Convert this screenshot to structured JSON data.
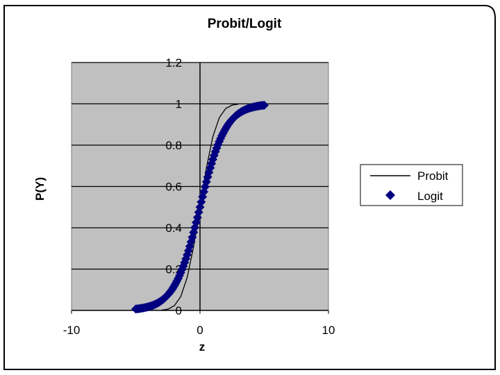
{
  "chart_data": {
    "type": "scatter",
    "title": "Probit/Logit",
    "xlabel": "z",
    "ylabel": "P(Y)",
    "xlim": [
      -10,
      10
    ],
    "ylim": [
      0,
      1.2
    ],
    "x_ticks": [
      "-10",
      "0",
      "10"
    ],
    "y_ticks": [
      "0",
      "0.2",
      "0.4",
      "0.6",
      "0.8",
      "1",
      "1.2"
    ],
    "grid": "horizontal",
    "legend_position": "right",
    "plot_background": "#c0c0c0",
    "series": [
      {
        "name": "Probit",
        "style": "line",
        "color": "#000000",
        "x": [
          -3,
          -2.5,
          -2,
          -1.5,
          -1,
          -0.5,
          0,
          0.5,
          1,
          1.5,
          2,
          2.5,
          3
        ],
        "y": [
          0.001,
          0.006,
          0.023,
          0.067,
          0.159,
          0.309,
          0.5,
          0.691,
          0.841,
          0.933,
          0.977,
          0.994,
          0.999
        ]
      },
      {
        "name": "Logit",
        "style": "marker",
        "marker": "diamond",
        "color": "#000080",
        "x_start": -5,
        "x_end": 5,
        "x_step": 0.1
      }
    ]
  },
  "legend": {
    "items": [
      {
        "label": "Probit",
        "symbol": "line"
      },
      {
        "label": "Logit",
        "symbol": "diamond"
      }
    ]
  }
}
